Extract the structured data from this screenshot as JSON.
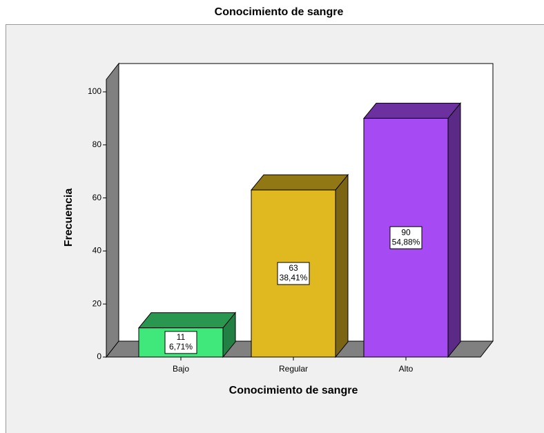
{
  "chart_data": {
    "type": "bar3d",
    "title": "Conocimiento de sangre",
    "x_label": "Conocimiento de sangre",
    "y_label": "Frecuencia",
    "categories": [
      "Bajo",
      "Regular",
      "Alto"
    ],
    "values": [
      11,
      63,
      90
    ],
    "percents": [
      6.71,
      38.41,
      54.88
    ],
    "percent_labels": [
      "6,71%",
      "38,41%",
      "54,88%"
    ],
    "colors": [
      "#40e87c",
      "#e0b820",
      "#a64bf4"
    ],
    "ylim": [
      0,
      100
    ],
    "yticks": [
      0,
      20,
      40,
      60,
      80,
      100
    ]
  }
}
